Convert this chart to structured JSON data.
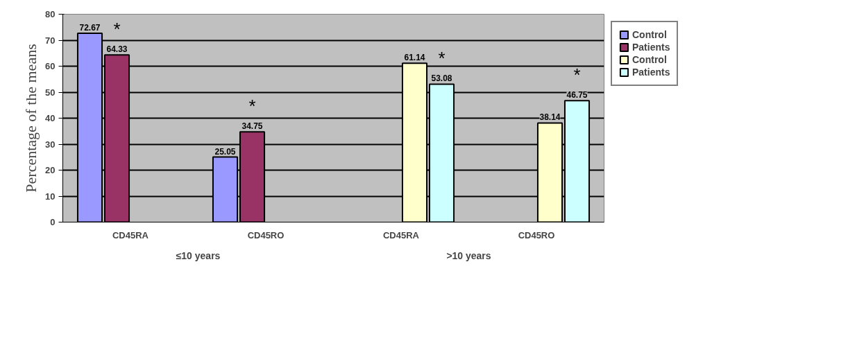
{
  "chart_data": {
    "type": "bar",
    "ylabel": "Percentage of the means",
    "categories": [
      "CD45RA",
      "CD45RO",
      "CD45RA",
      "CD45RO"
    ],
    "series": [
      {
        "name": "Control",
        "color": "#9999ff",
        "values": [
          72.67,
          25.05,
          null,
          null
        ]
      },
      {
        "name": "Patients",
        "color": "#993366",
        "values": [
          64.33,
          34.75,
          null,
          null
        ]
      },
      {
        "name": "Control",
        "color": "#ffffcc",
        "values": [
          null,
          null,
          61.14,
          38.14
        ]
      },
      {
        "name": "Patients",
        "color": "#ccffff",
        "values": [
          null,
          null,
          53.08,
          46.75
        ]
      }
    ],
    "annotations": [
      "≤10 years",
      ">10 years",
      "*",
      "*",
      "*",
      "*"
    ],
    "ylim": [
      0,
      80
    ],
    "yticks": [
      0,
      10,
      20,
      30,
      40,
      50,
      60,
      70,
      80
    ],
    "grid": "y",
    "legend": "top right",
    "data_labels": true
  }
}
